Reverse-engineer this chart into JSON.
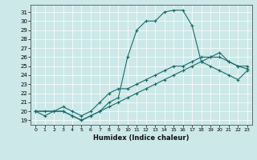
{
  "xlabel": "Humidex (Indice chaleur)",
  "background_color": "#cce8e8",
  "line_color": "#1a6b6b",
  "xlim": [
    -0.5,
    23.5
  ],
  "ylim": [
    18.5,
    31.8
  ],
  "xticks": [
    0,
    1,
    2,
    3,
    4,
    5,
    6,
    7,
    8,
    9,
    10,
    11,
    12,
    13,
    14,
    15,
    16,
    17,
    18,
    19,
    20,
    21,
    22,
    23
  ],
  "yticks": [
    19,
    20,
    21,
    22,
    23,
    24,
    25,
    26,
    27,
    28,
    29,
    30,
    31
  ],
  "curves": [
    {
      "x": [
        0,
        1,
        2,
        3,
        4,
        5,
        6,
        7,
        8,
        9,
        10,
        11,
        12,
        13,
        14,
        15,
        16,
        17,
        18,
        19,
        20,
        21,
        22,
        23
      ],
      "y": [
        20,
        19.5,
        20,
        20,
        19.5,
        19,
        19.5,
        20,
        20.5,
        21,
        21.5,
        22,
        22.5,
        23,
        23.5,
        24,
        24.5,
        25,
        25.5,
        25,
        24.5,
        24,
        23.5,
        24.5
      ]
    },
    {
      "x": [
        0,
        1,
        2,
        3,
        4,
        5,
        6,
        7,
        8,
        9,
        10,
        11,
        12,
        13,
        14,
        15,
        16,
        17,
        18,
        19,
        20,
        21,
        22,
        23
      ],
      "y": [
        20,
        20,
        20,
        20.5,
        20,
        19.5,
        20,
        21,
        22,
        22.5,
        22.5,
        23,
        23.5,
        24,
        24.5,
        25,
        25,
        25.5,
        26,
        26,
        26,
        25.5,
        25,
        25
      ]
    },
    {
      "x": [
        0,
        3,
        4,
        5,
        6,
        7,
        8,
        9,
        10,
        11,
        12,
        13,
        14,
        15,
        16,
        17,
        18,
        19,
        20,
        21,
        22,
        23
      ],
      "y": [
        20,
        20,
        19.5,
        19,
        19.5,
        20,
        21,
        21.5,
        26,
        29,
        30,
        30,
        31,
        31.2,
        31.2,
        29.5,
        25.5,
        26,
        26.5,
        25.5,
        25.0,
        24.7
      ]
    }
  ]
}
